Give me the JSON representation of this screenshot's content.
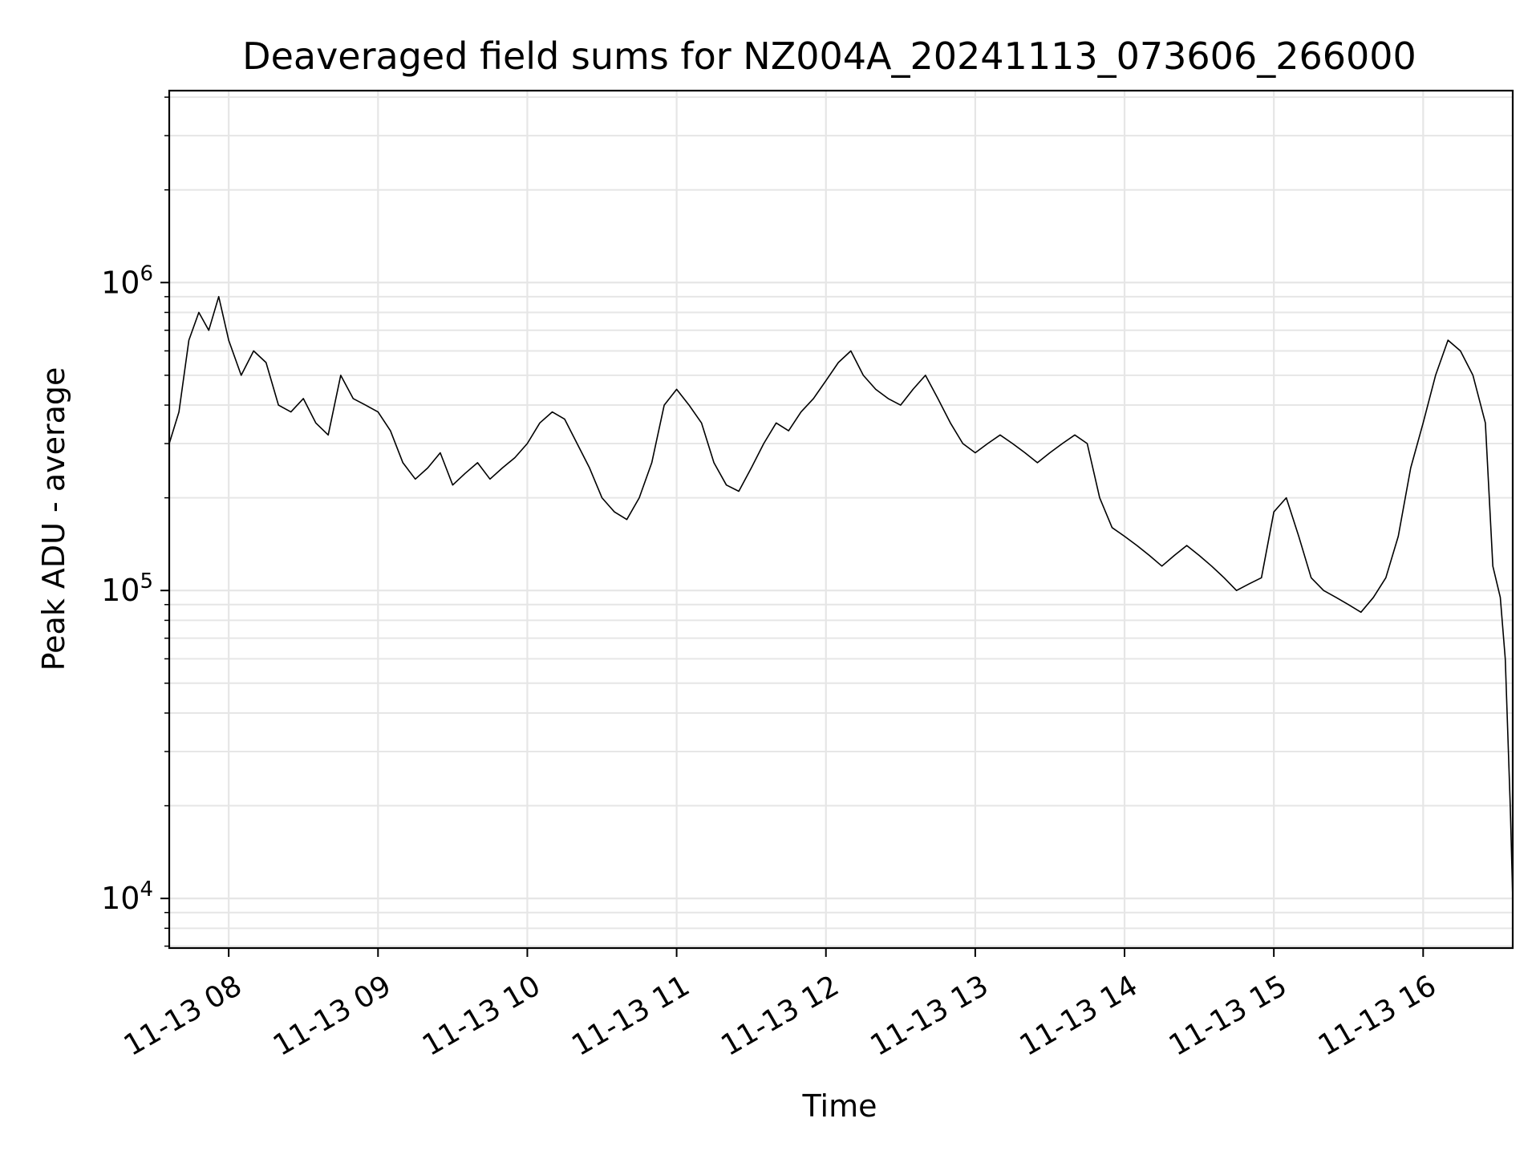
{
  "chart_data": {
    "type": "line",
    "title": "Deaveraged field sums for NZ004A_20241113_073606_266000",
    "xlabel": "Time",
    "ylabel": "Peak ADU - average",
    "xscale": "time",
    "yscale": "log",
    "xlim": [
      "2024-11-13T07:36:06",
      "2024-11-13T16:36:00"
    ],
    "ylim": [
      6900,
      4200000
    ],
    "x_ticks": [
      {
        "t": "2024-11-13T08:00:00",
        "label": "11-13 08"
      },
      {
        "t": "2024-11-13T09:00:00",
        "label": "11-13 09"
      },
      {
        "t": "2024-11-13T10:00:00",
        "label": "11-13 10"
      },
      {
        "t": "2024-11-13T11:00:00",
        "label": "11-13 11"
      },
      {
        "t": "2024-11-13T12:00:00",
        "label": "11-13 12"
      },
      {
        "t": "2024-11-13T13:00:00",
        "label": "11-13 13"
      },
      {
        "t": "2024-11-13T14:00:00",
        "label": "11-13 14"
      },
      {
        "t": "2024-11-13T15:00:00",
        "label": "11-13 15"
      },
      {
        "t": "2024-11-13T16:00:00",
        "label": "11-13 16"
      }
    ],
    "y_ticks": [
      {
        "value": 10000,
        "base": "10",
        "exp": "4"
      },
      {
        "value": 100000,
        "base": "10",
        "exp": "5"
      },
      {
        "value": 1000000,
        "base": "10",
        "exp": "6"
      }
    ],
    "grid": true,
    "line_color": "#000000",
    "grid_color": "#e6e6e6",
    "series": [
      {
        "points": [
          [
            "2024-11-13T07:36:06",
            300000
          ],
          [
            "2024-11-13T07:40:00",
            380000
          ],
          [
            "2024-11-13T07:44:00",
            650000
          ],
          [
            "2024-11-13T07:48:00",
            800000
          ],
          [
            "2024-11-13T07:52:00",
            700000
          ],
          [
            "2024-11-13T07:56:00",
            900000
          ],
          [
            "2024-11-13T08:00:00",
            650000
          ],
          [
            "2024-11-13T08:05:00",
            500000
          ],
          [
            "2024-11-13T08:10:00",
            600000
          ],
          [
            "2024-11-13T08:15:00",
            550000
          ],
          [
            "2024-11-13T08:20:00",
            400000
          ],
          [
            "2024-11-13T08:25:00",
            380000
          ],
          [
            "2024-11-13T08:30:00",
            420000
          ],
          [
            "2024-11-13T08:35:00",
            350000
          ],
          [
            "2024-11-13T08:40:00",
            320000
          ],
          [
            "2024-11-13T08:45:00",
            500000
          ],
          [
            "2024-11-13T08:50:00",
            420000
          ],
          [
            "2024-11-13T08:55:00",
            400000
          ],
          [
            "2024-11-13T09:00:00",
            380000
          ],
          [
            "2024-11-13T09:05:00",
            330000
          ],
          [
            "2024-11-13T09:10:00",
            260000
          ],
          [
            "2024-11-13T09:15:00",
            230000
          ],
          [
            "2024-11-13T09:20:00",
            250000
          ],
          [
            "2024-11-13T09:25:00",
            280000
          ],
          [
            "2024-11-13T09:30:00",
            220000
          ],
          [
            "2024-11-13T09:35:00",
            240000
          ],
          [
            "2024-11-13T09:40:00",
            260000
          ],
          [
            "2024-11-13T09:45:00",
            230000
          ],
          [
            "2024-11-13T09:50:00",
            250000
          ],
          [
            "2024-11-13T09:55:00",
            270000
          ],
          [
            "2024-11-13T10:00:00",
            300000
          ],
          [
            "2024-11-13T10:05:00",
            350000
          ],
          [
            "2024-11-13T10:10:00",
            380000
          ],
          [
            "2024-11-13T10:15:00",
            360000
          ],
          [
            "2024-11-13T10:20:00",
            300000
          ],
          [
            "2024-11-13T10:25:00",
            250000
          ],
          [
            "2024-11-13T10:30:00",
            200000
          ],
          [
            "2024-11-13T10:35:00",
            180000
          ],
          [
            "2024-11-13T10:40:00",
            170000
          ],
          [
            "2024-11-13T10:45:00",
            200000
          ],
          [
            "2024-11-13T10:50:00",
            260000
          ],
          [
            "2024-11-13T10:55:00",
            400000
          ],
          [
            "2024-11-13T11:00:00",
            450000
          ],
          [
            "2024-11-13T11:05:00",
            400000
          ],
          [
            "2024-11-13T11:10:00",
            350000
          ],
          [
            "2024-11-13T11:15:00",
            260000
          ],
          [
            "2024-11-13T11:20:00",
            220000
          ],
          [
            "2024-11-13T11:25:00",
            210000
          ],
          [
            "2024-11-13T11:30:00",
            250000
          ],
          [
            "2024-11-13T11:35:00",
            300000
          ],
          [
            "2024-11-13T11:40:00",
            350000
          ],
          [
            "2024-11-13T11:45:00",
            330000
          ],
          [
            "2024-11-13T11:50:00",
            380000
          ],
          [
            "2024-11-13T11:55:00",
            420000
          ],
          [
            "2024-11-13T12:00:00",
            480000
          ],
          [
            "2024-11-13T12:05:00",
            550000
          ],
          [
            "2024-11-13T12:10:00",
            600000
          ],
          [
            "2024-11-13T12:15:00",
            500000
          ],
          [
            "2024-11-13T12:20:00",
            450000
          ],
          [
            "2024-11-13T12:25:00",
            420000
          ],
          [
            "2024-11-13T12:30:00",
            400000
          ],
          [
            "2024-11-13T12:35:00",
            450000
          ],
          [
            "2024-11-13T12:40:00",
            500000
          ],
          [
            "2024-11-13T12:45:00",
            420000
          ],
          [
            "2024-11-13T12:50:00",
            350000
          ],
          [
            "2024-11-13T12:55:00",
            300000
          ],
          [
            "2024-11-13T13:00:00",
            280000
          ],
          [
            "2024-11-13T13:05:00",
            300000
          ],
          [
            "2024-11-13T13:10:00",
            320000
          ],
          [
            "2024-11-13T13:15:00",
            300000
          ],
          [
            "2024-11-13T13:20:00",
            280000
          ],
          [
            "2024-11-13T13:25:00",
            260000
          ],
          [
            "2024-11-13T13:30:00",
            280000
          ],
          [
            "2024-11-13T13:35:00",
            300000
          ],
          [
            "2024-11-13T13:40:00",
            320000
          ],
          [
            "2024-11-13T13:45:00",
            300000
          ],
          [
            "2024-11-13T13:50:00",
            200000
          ],
          [
            "2024-11-13T13:55:00",
            160000
          ],
          [
            "2024-11-13T14:00:00",
            150000
          ],
          [
            "2024-11-13T14:05:00",
            140000
          ],
          [
            "2024-11-13T14:10:00",
            130000
          ],
          [
            "2024-11-13T14:15:00",
            120000
          ],
          [
            "2024-11-13T14:20:00",
            130000
          ],
          [
            "2024-11-13T14:25:00",
            140000
          ],
          [
            "2024-11-13T14:30:00",
            130000
          ],
          [
            "2024-11-13T14:35:00",
            120000
          ],
          [
            "2024-11-13T14:40:00",
            110000
          ],
          [
            "2024-11-13T14:45:00",
            100000
          ],
          [
            "2024-11-13T14:50:00",
            105000
          ],
          [
            "2024-11-13T14:55:00",
            110000
          ],
          [
            "2024-11-13T15:00:00",
            180000
          ],
          [
            "2024-11-13T15:05:00",
            200000
          ],
          [
            "2024-11-13T15:10:00",
            150000
          ],
          [
            "2024-11-13T15:15:00",
            110000
          ],
          [
            "2024-11-13T15:20:00",
            100000
          ],
          [
            "2024-11-13T15:25:00",
            95000
          ],
          [
            "2024-11-13T15:30:00",
            90000
          ],
          [
            "2024-11-13T15:35:00",
            85000
          ],
          [
            "2024-11-13T15:40:00",
            95000
          ],
          [
            "2024-11-13T15:45:00",
            110000
          ],
          [
            "2024-11-13T15:50:00",
            150000
          ],
          [
            "2024-11-13T15:55:00",
            250000
          ],
          [
            "2024-11-13T16:00:00",
            350000
          ],
          [
            "2024-11-13T16:05:00",
            500000
          ],
          [
            "2024-11-13T16:10:00",
            650000
          ],
          [
            "2024-11-13T16:15:00",
            600000
          ],
          [
            "2024-11-13T16:20:00",
            500000
          ],
          [
            "2024-11-13T16:25:00",
            350000
          ],
          [
            "2024-11-13T16:28:00",
            120000
          ],
          [
            "2024-11-13T16:31:00",
            95000
          ],
          [
            "2024-11-13T16:33:00",
            60000
          ],
          [
            "2024-11-13T16:35:00",
            20000
          ],
          [
            "2024-11-13T16:36:00",
            10000
          ]
        ]
      }
    ]
  }
}
